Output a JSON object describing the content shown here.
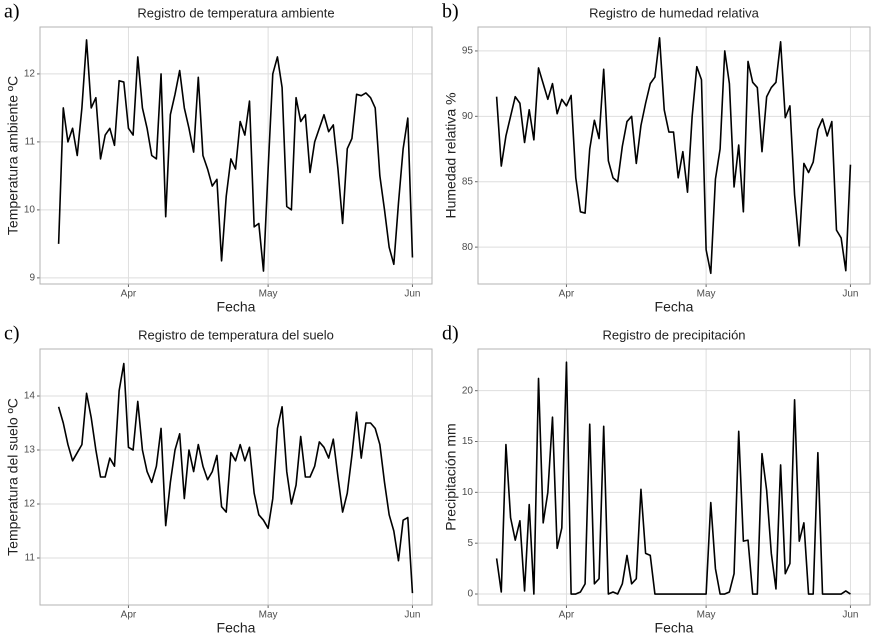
{
  "chart_data": [
    {
      "type": "line",
      "label": "a)",
      "title": "Registro de temperatura ambiente",
      "xlabel": "Fecha",
      "ylabel": "Temperatura ambiente ºC",
      "color": "#000000",
      "grid": true,
      "x": [
        -15,
        -14,
        -13,
        -12,
        -11,
        -10,
        -9,
        -8,
        -7,
        -6,
        -5,
        -4,
        -3,
        -2,
        -1,
        0,
        1,
        2,
        3,
        4,
        5,
        6,
        7,
        8,
        9,
        10,
        11,
        12,
        13,
        14,
        15,
        16,
        17,
        18,
        19,
        20,
        21,
        22,
        23,
        24,
        25,
        26,
        27,
        28,
        29,
        30,
        31,
        32,
        33,
        34,
        35,
        36,
        37,
        38,
        39,
        40,
        41,
        42,
        43,
        44,
        45,
        46,
        47,
        48,
        49,
        50,
        51,
        52,
        53,
        54,
        55,
        56,
        57,
        58,
        59,
        60,
        61
      ],
      "values": [
        9.5,
        11.5,
        11.0,
        11.2,
        10.8,
        11.5,
        12.5,
        11.5,
        11.65,
        10.75,
        11.1,
        11.2,
        10.95,
        11.9,
        11.88,
        11.2,
        11.1,
        12.25,
        11.5,
        11.2,
        10.8,
        10.75,
        12.0,
        9.9,
        11.4,
        11.7,
        12.05,
        11.5,
        11.2,
        10.85,
        11.95,
        10.8,
        10.6,
        10.35,
        10.45,
        9.25,
        10.2,
        10.75,
        10.6,
        11.3,
        11.1,
        11.6,
        9.75,
        9.8,
        9.1,
        10.6,
        12.0,
        12.25,
        11.8,
        10.05,
        10.0,
        11.65,
        11.3,
        11.4,
        10.55,
        11.0,
        11.2,
        11.4,
        11.15,
        11.25,
        10.6,
        9.8,
        10.9,
        11.05,
        11.7,
        11.68,
        11.72,
        11.65,
        11.5,
        10.5,
        10.0,
        9.45,
        9.2,
        10.1,
        10.9,
        11.35,
        9.3
      ],
      "xlim": [
        -19,
        65.2
      ],
      "xticks": [
        {
          "value": 0,
          "label": "Apr"
        },
        {
          "value": 30,
          "label": "May"
        },
        {
          "value": 61,
          "label": "Jun"
        }
      ],
      "ylim": [
        8.91,
        12.69
      ],
      "yticks": [
        9,
        10,
        11,
        12
      ]
    },
    {
      "type": "line",
      "label": "b)",
      "title": "Registro de humedad relativa",
      "xlabel": "Fecha",
      "ylabel": "Humedad relativa %",
      "color": "#000000",
      "grid": true,
      "x": [
        -15,
        -14,
        -13,
        -12,
        -11,
        -10,
        -9,
        -8,
        -7,
        -6,
        -5,
        -4,
        -3,
        -2,
        -1,
        0,
        1,
        2,
        3,
        4,
        5,
        6,
        7,
        8,
        9,
        10,
        11,
        12,
        13,
        14,
        15,
        16,
        17,
        18,
        19,
        20,
        21,
        22,
        23,
        24,
        25,
        26,
        27,
        28,
        29,
        30,
        31,
        32,
        33,
        34,
        35,
        36,
        37,
        38,
        39,
        40,
        41,
        42,
        43,
        44,
        45,
        46,
        47,
        48,
        49,
        50,
        51,
        52,
        53,
        54,
        55,
        56,
        57,
        58,
        59,
        60,
        61
      ],
      "values": [
        91.5,
        86.2,
        88.5,
        90,
        91.5,
        91,
        88,
        90.5,
        88.2,
        93.7,
        92.5,
        91.3,
        92.5,
        90.2,
        91.3,
        90.8,
        91.6,
        85.3,
        82.7,
        82.6,
        87.5,
        89.7,
        88.3,
        93.6,
        86.6,
        85.3,
        85,
        87.7,
        89.6,
        90,
        86.4,
        89.3,
        91,
        92.5,
        93,
        96,
        90.5,
        88.8,
        88.8,
        85.3,
        87.3,
        84.2,
        90,
        93.8,
        92.8,
        79.8,
        78,
        85.2,
        87.5,
        95,
        92.5,
        84.6,
        87.8,
        82.7,
        94.2,
        92.6,
        92.2,
        87.3,
        91.5,
        92.2,
        92.6,
        95.7,
        89.9,
        90.8,
        84,
        80.1,
        86.4,
        85.7,
        86.5,
        89,
        89.8,
        88.5,
        89.6,
        81.3,
        80.7,
        78.2,
        86.3
      ],
      "xlim": [
        -19,
        65.2
      ],
      "xticks": [
        {
          "value": 0,
          "label": "Apr"
        },
        {
          "value": 30,
          "label": "May"
        },
        {
          "value": 61,
          "label": "Jun"
        }
      ],
      "ylim": [
        77.18,
        96.83
      ],
      "yticks": [
        80,
        85,
        90,
        95
      ]
    },
    {
      "type": "line",
      "label": "c)",
      "title": "Registro de temperatura del suelo",
      "xlabel": "Fecha",
      "ylabel": "Temperatura del suelo ºC",
      "color": "#000000",
      "grid": true,
      "x": [
        -15,
        -14,
        -13,
        -12,
        -11,
        -10,
        -9,
        -8,
        -7,
        -6,
        -5,
        -4,
        -3,
        -2,
        -1,
        0,
        1,
        2,
        3,
        4,
        5,
        6,
        7,
        8,
        9,
        10,
        11,
        12,
        13,
        14,
        15,
        16,
        17,
        18,
        19,
        20,
        21,
        22,
        23,
        24,
        25,
        26,
        27,
        28,
        29,
        30,
        31,
        32,
        33,
        34,
        35,
        36,
        37,
        38,
        39,
        40,
        41,
        42,
        43,
        44,
        45,
        46,
        47,
        48,
        49,
        50,
        51,
        52,
        53,
        54,
        55,
        56,
        57,
        58,
        59,
        60,
        61
      ],
      "values": [
        13.8,
        13.5,
        13.1,
        12.8,
        12.95,
        13.1,
        14.05,
        13.6,
        13.0,
        12.5,
        12.5,
        12.85,
        12.7,
        14.1,
        14.6,
        13.05,
        13.0,
        13.9,
        13.0,
        12.6,
        12.4,
        12.7,
        13.4,
        11.6,
        12.4,
        13.0,
        13.3,
        12.1,
        13.0,
        12.6,
        13.1,
        12.7,
        12.45,
        12.6,
        12.9,
        11.95,
        11.85,
        12.95,
        12.8,
        13.1,
        12.8,
        13.05,
        12.2,
        11.8,
        11.7,
        11.55,
        12.1,
        13.4,
        13.8,
        12.6,
        12.0,
        12.35,
        13.25,
        12.5,
        12.5,
        12.7,
        13.15,
        13.05,
        12.85,
        13.2,
        12.5,
        11.85,
        12.2,
        12.9,
        13.7,
        12.85,
        13.5,
        13.5,
        13.4,
        13.1,
        12.4,
        11.8,
        11.5,
        10.95,
        11.7,
        11.75,
        10.35
      ],
      "xlim": [
        -19,
        65.2
      ],
      "xticks": [
        {
          "value": 0,
          "label": "Apr"
        },
        {
          "value": 30,
          "label": "May"
        },
        {
          "value": 61,
          "label": "Jun"
        }
      ],
      "ylim": [
        10.13,
        14.87
      ],
      "yticks": [
        11,
        12,
        13,
        14
      ]
    },
    {
      "type": "line",
      "label": "d)",
      "title": "Registro de precipitación",
      "xlabel": "Fecha",
      "ylabel": "Precipitación mm",
      "color": "#000000",
      "grid": true,
      "x": [
        -15,
        -14,
        -13,
        -12,
        -11,
        -10,
        -9,
        -8,
        -7,
        -6,
        -5,
        -4,
        -3,
        -2,
        -1,
        0,
        1,
        2,
        3,
        4,
        5,
        6,
        7,
        8,
        9,
        10,
        11,
        12,
        13,
        14,
        15,
        16,
        17,
        18,
        19,
        20,
        21,
        22,
        23,
        24,
        25,
        26,
        27,
        28,
        29,
        30,
        31,
        32,
        33,
        34,
        35,
        36,
        37,
        38,
        39,
        40,
        41,
        42,
        43,
        44,
        45,
        46,
        47,
        48,
        49,
        50,
        51,
        52,
        53,
        54,
        55,
        56,
        57,
        58,
        59,
        60,
        61
      ],
      "values": [
        3.5,
        0.2,
        14.7,
        7.5,
        5.3,
        7.2,
        0.3,
        8.8,
        0,
        21.2,
        7,
        10,
        17.4,
        4.5,
        6.5,
        22.8,
        0,
        0,
        0.2,
        1,
        16.7,
        1,
        1.5,
        16.5,
        0,
        0.2,
        0,
        1,
        3.8,
        1,
        1.5,
        10.3,
        4,
        3.8,
        0,
        0,
        0,
        0,
        0,
        0,
        0,
        0,
        0,
        0,
        0,
        0,
        9,
        2.5,
        0,
        0,
        0.2,
        2,
        16,
        5.2,
        5.3,
        0,
        0,
        13.8,
        10.2,
        4,
        0.5,
        12.7,
        2,
        3,
        19.1,
        5.2,
        7,
        0,
        0,
        13.9,
        0,
        0,
        0,
        0,
        0,
        0.3,
        0
      ],
      "xlim": [
        -19,
        65.2
      ],
      "xticks": [
        {
          "value": 0,
          "label": "Apr"
        },
        {
          "value": 30,
          "label": "May"
        },
        {
          "value": 61,
          "label": "Jun"
        }
      ],
      "ylim": [
        -1.08,
        24.1
      ],
      "yticks": [
        0,
        5,
        10,
        15,
        20
      ]
    }
  ]
}
